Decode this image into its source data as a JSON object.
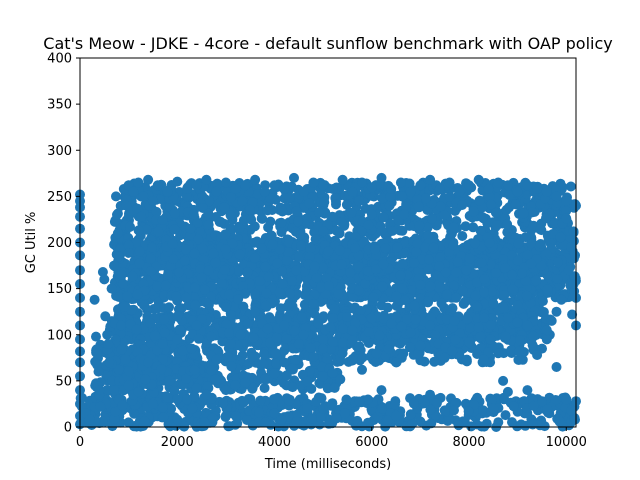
{
  "chart_data": {
    "type": "scatter",
    "title": "Cat's Meow - JDKE - 4core -  default sunflow benchmark with OAP policy",
    "xlabel": "Time (milliseconds)",
    "ylabel": "GC Util %",
    "xlim": [
      0,
      10200
    ],
    "ylim": [
      0,
      400
    ],
    "xticks": [
      0,
      2000,
      4000,
      6000,
      8000,
      10000
    ],
    "yticks": [
      0,
      50,
      100,
      150,
      200,
      250,
      300,
      350,
      400
    ],
    "grid": false,
    "series": [
      {
        "color": "#1f77b4",
        "marker": "circle",
        "points": [
          [
            0,
            252
          ],
          [
            0,
            245
          ],
          [
            0,
            238
          ],
          [
            0,
            228
          ],
          [
            0,
            215
          ],
          [
            0,
            200
          ],
          [
            0,
            186
          ],
          [
            0,
            170
          ],
          [
            0,
            155
          ],
          [
            0,
            140
          ],
          [
            0,
            125
          ],
          [
            0,
            110
          ],
          [
            0,
            95
          ],
          [
            0,
            82
          ],
          [
            0,
            70
          ],
          [
            0,
            55
          ],
          [
            0,
            40
          ],
          [
            0,
            25
          ],
          [
            0,
            12
          ],
          [
            0,
            3
          ],
          [
            40,
            22
          ],
          [
            120,
            15
          ],
          [
            200,
            8
          ],
          [
            300,
            138
          ],
          [
            330,
            98
          ],
          [
            350,
            80
          ],
          [
            380,
            60
          ],
          [
            400,
            40
          ],
          [
            420,
            22
          ],
          [
            470,
            168
          ],
          [
            500,
            160
          ],
          [
            520,
            120
          ],
          [
            560,
            100
          ],
          [
            580,
            90
          ],
          [
            600,
            70
          ],
          [
            650,
            150
          ],
          [
            700,
            175
          ],
          [
            740,
            250
          ],
          [
            760,
            230
          ],
          [
            780,
            210
          ],
          [
            800,
            185
          ],
          [
            850,
            165
          ],
          [
            900,
            258
          ],
          [
            950,
            240
          ],
          [
            1000,
            262
          ],
          [
            1100,
            255
          ],
          [
            1200,
            265
          ],
          [
            1300,
            250
          ],
          [
            1400,
            268
          ],
          [
            1500,
            245
          ],
          [
            1600,
            262
          ],
          [
            1800,
            255
          ],
          [
            2000,
            266
          ],
          [
            2200,
            258
          ],
          [
            2400,
            262
          ],
          [
            2600,
            268
          ],
          [
            2800,
            255
          ],
          [
            3000,
            265
          ],
          [
            3200,
            258
          ],
          [
            3400,
            262
          ],
          [
            3600,
            268
          ],
          [
            3800,
            255
          ],
          [
            4000,
            262
          ],
          [
            4200,
            258
          ],
          [
            4400,
            270
          ],
          [
            4600,
            255
          ],
          [
            4800,
            265
          ],
          [
            5000,
            262
          ],
          [
            5200,
            258
          ],
          [
            5400,
            268
          ],
          [
            5600,
            255
          ],
          [
            5800,
            265
          ],
          [
            6000,
            260
          ],
          [
            6200,
            270
          ],
          [
            6400,
            258
          ],
          [
            6600,
            265
          ],
          [
            6800,
            255
          ],
          [
            7000,
            262
          ],
          [
            7200,
            268
          ],
          [
            7400,
            258
          ],
          [
            7600,
            265
          ],
          [
            7800,
            255
          ],
          [
            8000,
            262
          ],
          [
            8200,
            268
          ],
          [
            8400,
            258
          ],
          [
            8600,
            265
          ],
          [
            8800,
            262
          ],
          [
            9000,
            255
          ],
          [
            9200,
            262
          ],
          [
            9400,
            258
          ],
          [
            9600,
            255
          ],
          [
            9800,
            250
          ],
          [
            10000,
            245
          ],
          [
            10200,
            240
          ],
          [
            10000,
            226
          ],
          [
            10150,
            212
          ],
          [
            10100,
            195
          ],
          [
            10180,
            186
          ],
          [
            10050,
            170
          ],
          [
            10150,
            155
          ],
          [
            10200,
            140
          ],
          [
            10120,
            122
          ],
          [
            10200,
            110
          ],
          [
            9900,
            138
          ],
          [
            9800,
            125
          ],
          [
            9700,
            115
          ],
          [
            9600,
            95
          ],
          [
            9500,
            85
          ],
          [
            9400,
            78
          ],
          [
            8700,
            50
          ],
          [
            9200,
            40
          ],
          [
            9800,
            65
          ],
          [
            10000,
            30
          ],
          [
            10200,
            28
          ],
          [
            10100,
            18
          ],
          [
            10180,
            8
          ],
          [
            8600,
            80
          ],
          [
            8000,
            92
          ],
          [
            7500,
            75
          ],
          [
            7000,
            88
          ],
          [
            6500,
            70
          ],
          [
            6100,
            80
          ],
          [
            5800,
            62
          ],
          [
            5600,
            72
          ],
          [
            5400,
            80
          ],
          [
            5200,
            92
          ],
          [
            5000,
            85
          ],
          [
            4800,
            76
          ],
          [
            4500,
            90
          ],
          [
            4200,
            70
          ],
          [
            4000,
            58
          ],
          [
            3800,
            52
          ],
          [
            3400,
            48
          ],
          [
            3000,
            40
          ],
          [
            2600,
            35
          ],
          [
            2400,
            42
          ],
          [
            2200,
            30
          ],
          [
            1800,
            32
          ],
          [
            1500,
            25
          ],
          [
            1200,
            38
          ],
          [
            1000,
            45
          ],
          [
            1400,
            70
          ],
          [
            1700,
            90
          ],
          [
            2000,
            95
          ],
          [
            2300,
            85
          ],
          [
            2700,
            98
          ],
          [
            3100,
            90
          ],
          [
            3300,
            100
          ],
          [
            4200,
            110
          ],
          [
            4600,
            100
          ],
          [
            4900,
            112
          ],
          [
            5200,
            118
          ],
          [
            5600,
            105
          ],
          [
            6000,
            118
          ],
          [
            6400,
            112
          ],
          [
            6800,
            102
          ],
          [
            7200,
            110
          ],
          [
            7700,
            115
          ],
          [
            8200,
            108
          ],
          [
            8800,
            118
          ],
          [
            9200,
            110
          ],
          [
            9600,
            105
          ],
          [
            2000,
            120
          ],
          [
            2400,
            110
          ],
          [
            3000,
            130
          ],
          [
            3600,
            125
          ],
          [
            6200,
            40
          ],
          [
            7200,
            35
          ],
          [
            8800,
            38
          ],
          [
            9500,
            28
          ],
          [
            5000,
            20
          ],
          [
            6500,
            12
          ],
          [
            7500,
            18
          ],
          [
            8500,
            20
          ],
          [
            4000,
            15
          ],
          [
            3000,
            12
          ],
          [
            2000,
            8
          ],
          [
            1000,
            5
          ]
        ]
      }
    ],
    "regions": [
      {
        "x0": 700,
        "x1": 10200,
        "y0": 140,
        "y1": 265
      },
      {
        "x0": 750,
        "x1": 9700,
        "y0": 95,
        "y1": 200
      },
      {
        "x0": 600,
        "x1": 5400,
        "y0": 40,
        "y1": 120
      },
      {
        "x0": 5400,
        "x1": 9400,
        "y0": 70,
        "y1": 120
      },
      {
        "x0": 0,
        "x1": 10200,
        "y0": 0,
        "y1": 32
      },
      {
        "x0": 300,
        "x1": 2400,
        "y0": 20,
        "y1": 90
      }
    ]
  }
}
